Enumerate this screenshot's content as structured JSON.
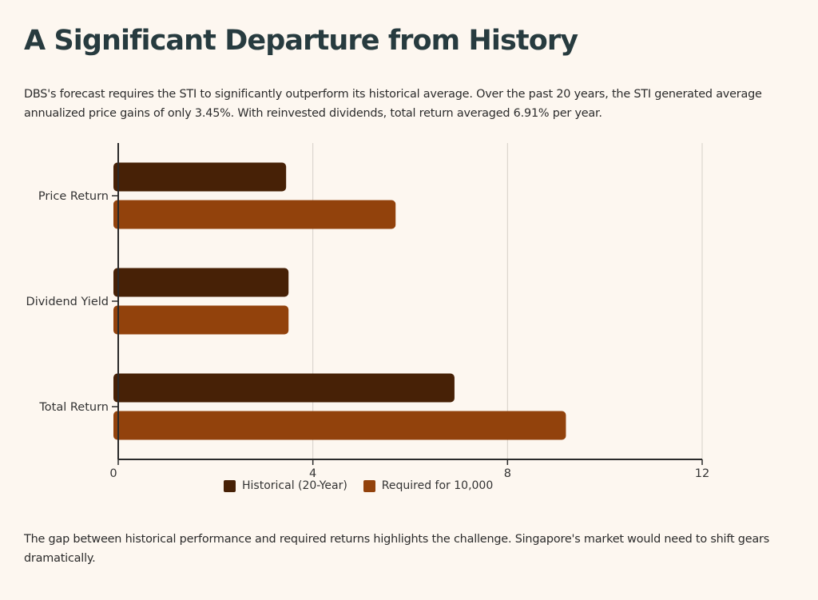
{
  "header": {
    "title": "A Significant Departure from History"
  },
  "intro_text": "DBS's forecast requires the STI to significantly outperform its historical average. Over the past 20 years, the STI generated average annualized price gains of only 3.45%. With reinvested dividends, total return averaged 6.91% per year.",
  "outro_text": "The gap between historical performance and required returns highlights the challenge. Singapore's market would need to shift gears dramatically.",
  "colors": {
    "historical": "#472106",
    "required": "#92420c",
    "axis": "#2a2a2a",
    "grid": "#d5d0c8"
  },
  "chart_data": {
    "type": "bar",
    "orientation": "horizontal",
    "title": "",
    "xlabel": "",
    "ylabel": "",
    "categories": [
      "Price Return",
      "Dividend Yield",
      "Total Return"
    ],
    "series": [
      {
        "name": "Historical (20-Year)",
        "values": [
          3.45,
          3.5,
          6.91
        ]
      },
      {
        "name": "Required for 10,000",
        "values": [
          5.7,
          3.5,
          9.2
        ]
      }
    ],
    "xlim": [
      0,
      12
    ],
    "xticks": [
      "0",
      "4",
      "8",
      "12"
    ],
    "grid": true,
    "legend_position": "bottom"
  }
}
